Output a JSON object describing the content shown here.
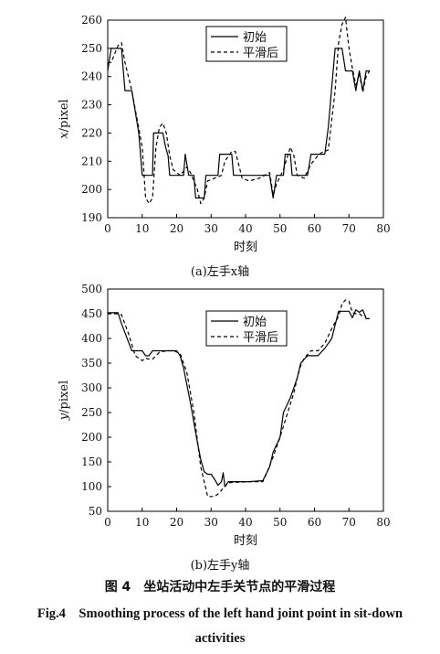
{
  "chart_data": [
    {
      "type": "line",
      "panel_caption": "(a)左手x轴",
      "xlabel": "时刻",
      "ylabel": "x/pixel",
      "xlim": [
        0,
        80
      ],
      "ylim": [
        190,
        260
      ],
      "xticks": [
        0,
        10,
        20,
        30,
        40,
        50,
        60,
        70,
        80
      ],
      "yticks": [
        190,
        200,
        210,
        220,
        230,
        240,
        250,
        260
      ],
      "legend_position": "top-right",
      "series": [
        {
          "name": "初始",
          "style": "solid",
          "color": "#000000",
          "points": [
            [
              0,
              242
            ],
            [
              1,
              250
            ],
            [
              4,
              250
            ],
            [
              5,
              235
            ],
            [
              7,
              235
            ],
            [
              9,
              220
            ],
            [
              10,
              205
            ],
            [
              13,
              205
            ],
            [
              13.3,
              220
            ],
            [
              16,
              220
            ],
            [
              16.8,
              215
            ],
            [
              17.5,
              212
            ],
            [
              18,
              205
            ],
            [
              22,
              205
            ],
            [
              22.5,
              212.5
            ],
            [
              23.5,
              205
            ],
            [
              25,
              205
            ],
            [
              25.5,
              197
            ],
            [
              28,
              197
            ],
            [
              28.5,
              205
            ],
            [
              32,
              205
            ],
            [
              32.5,
              212.5
            ],
            [
              36,
              212.5
            ],
            [
              36.5,
              205
            ],
            [
              47,
              205
            ],
            [
              48,
              197
            ],
            [
              49,
              205
            ],
            [
              51,
              205
            ],
            [
              51.5,
              212.5
            ],
            [
              53,
              212.5
            ],
            [
              53.5,
              205
            ],
            [
              58,
              205
            ],
            [
              59,
              212.5
            ],
            [
              63,
              212.5
            ],
            [
              64,
              222
            ],
            [
              66,
              250
            ],
            [
              68,
              250
            ],
            [
              69,
              242
            ],
            [
              71,
              242
            ],
            [
              72,
              235
            ],
            [
              73,
              242
            ],
            [
              74,
              235
            ],
            [
              75,
              242
            ],
            [
              76,
              242
            ]
          ]
        },
        {
          "name": "平滑后",
          "style": "dashed",
          "color": "#000000",
          "points": [
            [
              0,
              245
            ],
            [
              1,
              245
            ],
            [
              3,
              251
            ],
            [
              4,
              252
            ],
            [
              5,
              245
            ],
            [
              7,
              235
            ],
            [
              10,
              215
            ],
            [
              11,
              197
            ],
            [
              12,
              195
            ],
            [
              13,
              197
            ],
            [
              14,
              215
            ],
            [
              15,
              222
            ],
            [
              16,
              223.5
            ],
            [
              17,
              220
            ],
            [
              18,
              212
            ],
            [
              19,
              207
            ],
            [
              21,
              205
            ],
            [
              23,
              208
            ],
            [
              24,
              206
            ],
            [
              26,
              200
            ],
            [
              27,
              195
            ],
            [
              28,
              197
            ],
            [
              29,
              203
            ],
            [
              33,
              205
            ],
            [
              34,
              210
            ],
            [
              36,
              213.5
            ],
            [
              37,
              213.5
            ],
            [
              38,
              209
            ],
            [
              39,
              204
            ],
            [
              41,
              203
            ],
            [
              44,
              204
            ],
            [
              47,
              206
            ],
            [
              48,
              198
            ],
            [
              49,
              202
            ],
            [
              51,
              207
            ],
            [
              52,
              211
            ],
            [
              53,
              215
            ],
            [
              54,
              212
            ],
            [
              55,
              205
            ],
            [
              57,
              204
            ],
            [
              59,
              209
            ],
            [
              61,
              212
            ],
            [
              62,
              213
            ],
            [
              64,
              214
            ],
            [
              66,
              235
            ],
            [
              67,
              252
            ],
            [
              68,
              258.5
            ],
            [
              69,
              261
            ],
            [
              70,
              250
            ],
            [
              71,
              243
            ],
            [
              72,
              237
            ],
            [
              73,
              241
            ],
            [
              74,
              234.5
            ],
            [
              75,
              240
            ],
            [
              76,
              242
            ]
          ]
        }
      ]
    },
    {
      "type": "line",
      "panel_caption": "(b)左手y轴",
      "xlabel": "时刻",
      "ylabel": "y/pixel",
      "xlim": [
        0,
        80
      ],
      "ylim": [
        50,
        500
      ],
      "xticks": [
        0,
        10,
        20,
        30,
        40,
        50,
        60,
        70,
        80
      ],
      "yticks": [
        50,
        100,
        150,
        200,
        250,
        300,
        350,
        400,
        450,
        500
      ],
      "legend_position": "top-right",
      "series": [
        {
          "name": "初始",
          "style": "solid",
          "color": "#000000",
          "points": [
            [
              0,
              452
            ],
            [
              3,
              452
            ],
            [
              4,
              430
            ],
            [
              7,
              375
            ],
            [
              10,
              375
            ],
            [
              11,
              365
            ],
            [
              12,
              365
            ],
            [
              13,
              375
            ],
            [
              20,
              375
            ],
            [
              21,
              365
            ],
            [
              22,
              340
            ],
            [
              24,
              270
            ],
            [
              26,
              190
            ],
            [
              27,
              155
            ],
            [
              28,
              130
            ],
            [
              29,
              125
            ],
            [
              30,
              125
            ],
            [
              31,
              115
            ],
            [
              32,
              103
            ],
            [
              33,
              110
            ],
            [
              33.5,
              128
            ],
            [
              34,
              100
            ],
            [
              35,
              110
            ],
            [
              41,
              110
            ],
            [
              45,
              112
            ],
            [
              47,
              140
            ],
            [
              48,
              170
            ],
            [
              50,
              200
            ],
            [
              51,
              250
            ],
            [
              53,
              280
            ],
            [
              55,
              320
            ],
            [
              56,
              350
            ],
            [
              58,
              365
            ],
            [
              61,
              365
            ],
            [
              63,
              380
            ],
            [
              65,
              400
            ],
            [
              67,
              455
            ],
            [
              70,
              455
            ],
            [
              71,
              442
            ],
            [
              72,
              458
            ],
            [
              73,
              453
            ],
            [
              74,
              458
            ],
            [
              75,
              440
            ],
            [
              76,
              440
            ]
          ]
        },
        {
          "name": "平滑后",
          "style": "dashed",
          "color": "#000000",
          "points": [
            [
              0,
              450
            ],
            [
              3,
              450
            ],
            [
              4,
              448
            ],
            [
              6,
              410
            ],
            [
              8,
              365
            ],
            [
              10,
              355
            ],
            [
              11,
              360
            ],
            [
              12,
              358
            ],
            [
              13,
              358
            ],
            [
              15,
              372
            ],
            [
              17,
              375
            ],
            [
              19,
              375
            ],
            [
              21,
              370
            ],
            [
              23,
              330
            ],
            [
              25,
              250
            ],
            [
              27,
              140
            ],
            [
              29,
              80
            ],
            [
              31,
              80
            ],
            [
              32,
              85
            ],
            [
              34,
              100
            ],
            [
              35,
              108
            ],
            [
              41,
              110
            ],
            [
              45,
              110
            ],
            [
              46,
              125
            ],
            [
              48,
              160
            ],
            [
              50,
              200
            ],
            [
              52,
              245
            ],
            [
              54,
              290
            ],
            [
              55,
              320
            ],
            [
              56,
              345
            ],
            [
              57,
              360
            ],
            [
              59,
              375
            ],
            [
              61,
              375
            ],
            [
              63,
              390
            ],
            [
              65,
              420
            ],
            [
              67,
              445
            ],
            [
              68,
              470
            ],
            [
              69,
              478
            ],
            [
              70,
              475
            ],
            [
              71,
              452
            ],
            [
              72,
              450
            ],
            [
              73,
              450
            ],
            [
              74,
              445
            ],
            [
              75,
              445
            ]
          ]
        }
      ]
    }
  ],
  "captions": {
    "panel_a": "(a)左手x轴",
    "panel_b": "(b)左手y轴",
    "figure_zh": "图 4　坐站活动中左手关节点的平滑过程",
    "figure_en": "Fig.4　Smoothing process of the left hand joint point in sit-down activities"
  }
}
